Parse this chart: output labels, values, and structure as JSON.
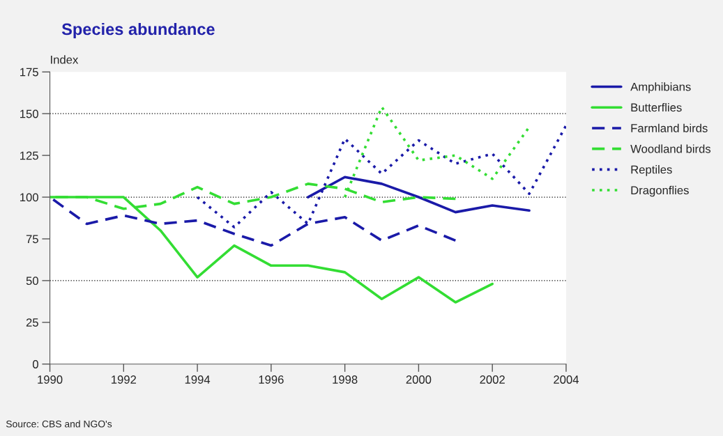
{
  "chart_data": {
    "type": "line",
    "title": "Species abundance",
    "ylabel": "Index",
    "xlim": [
      1990,
      2004
    ],
    "xticks": [
      1990,
      1992,
      1994,
      1996,
      1998,
      2000,
      2002,
      2004
    ],
    "ylim": [
      0,
      175
    ],
    "yticks": [
      0,
      25,
      50,
      75,
      100,
      125,
      150,
      175
    ],
    "grid": false,
    "legend": "right",
    "marker": "none",
    "ref_lines": [
      {
        "axis": "y",
        "value": 50,
        "line_style": "dotted",
        "color": "#000000"
      },
      {
        "axis": "y",
        "value": 100,
        "line_style": "dotted",
        "color": "#000000"
      },
      {
        "axis": "y",
        "value": 150,
        "line_style": "dotted",
        "color": "#000000"
      }
    ],
    "annotations": [
      "Source: CBS and NGO's"
    ],
    "series": [
      {
        "name": "Amphibians",
        "color": "#1a1aa8",
        "line_style": "solid",
        "x": [
          1997,
          1998,
          1999,
          2000,
          2001,
          2002,
          2003
        ],
        "values": [
          100,
          112,
          108,
          100,
          91,
          95,
          92
        ]
      },
      {
        "name": "Butterflies",
        "color": "#33dd33",
        "line_style": "solid",
        "x": [
          1990,
          1991,
          1992,
          1993,
          1994,
          1995,
          1996,
          1997,
          1998,
          1999,
          2000,
          2001,
          2002
        ],
        "values": [
          100,
          100,
          100,
          80,
          52,
          71,
          59,
          59,
          55,
          39,
          52,
          37,
          48
        ]
      },
      {
        "name": "Farmland birds",
        "color": "#1a1aa8",
        "line_style": "dashed",
        "x": [
          1990,
          1991,
          1992,
          1993,
          1994,
          1995,
          1996,
          1997,
          1998,
          1999,
          2000,
          2001
        ],
        "values": [
          100,
          84,
          89,
          84,
          86,
          78,
          71,
          84,
          88,
          74,
          83,
          74
        ]
      },
      {
        "name": "Woodland birds",
        "color": "#33dd33",
        "line_style": "dashed",
        "x": [
          1990,
          1991,
          1992,
          1993,
          1994,
          1995,
          1996,
          1997,
          1998,
          1999,
          2000,
          2001
        ],
        "values": [
          100,
          100,
          93,
          96,
          106,
          96,
          100,
          108,
          105,
          97,
          100,
          99
        ]
      },
      {
        "name": "Reptiles",
        "color": "#1a1aa8",
        "line_style": "dotted",
        "x": [
          1994,
          1995,
          1996,
          1997,
          1998,
          1999,
          2000,
          2001,
          2002,
          2003,
          2004
        ],
        "values": [
          100,
          82,
          103,
          84,
          135,
          114,
          134,
          120,
          126,
          102,
          143
        ]
      },
      {
        "name": "Dragonflies",
        "color": "#33dd33",
        "line_style": "dotted",
        "x": [
          1998,
          1999,
          2000,
          2001,
          2002,
          2003
        ],
        "values": [
          100,
          154,
          122,
          125,
          111,
          142
        ]
      }
    ]
  }
}
